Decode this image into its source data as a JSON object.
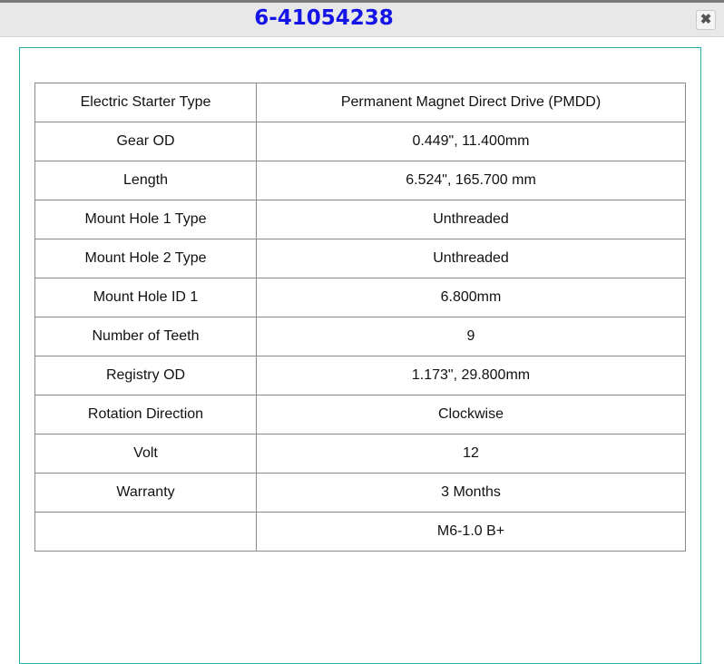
{
  "dialog": {
    "title": "6-41054238",
    "close_icon": "close-x-icon"
  },
  "specs": [
    {
      "label": "Electric Starter Type",
      "value": "Permanent Magnet Direct Drive (PMDD)"
    },
    {
      "label": "Gear OD",
      "value": "0.449\", 11.400mm"
    },
    {
      "label": "Length",
      "value": "6.524\", 165.700 mm"
    },
    {
      "label": "Mount Hole 1 Type",
      "value": "Unthreaded"
    },
    {
      "label": "Mount Hole 2 Type",
      "value": "Unthreaded"
    },
    {
      "label": "Mount Hole ID 1",
      "value": "6.800mm"
    },
    {
      "label": "Number of Teeth",
      "value": "9"
    },
    {
      "label": "Registry OD",
      "value": "1.173\", 29.800mm"
    },
    {
      "label": "Rotation Direction",
      "value": "Clockwise"
    },
    {
      "label": "Volt",
      "value": "12"
    },
    {
      "label": "Warranty",
      "value": "3 Months"
    },
    {
      "label": "",
      "value": "M6-1.0 B+"
    }
  ]
}
